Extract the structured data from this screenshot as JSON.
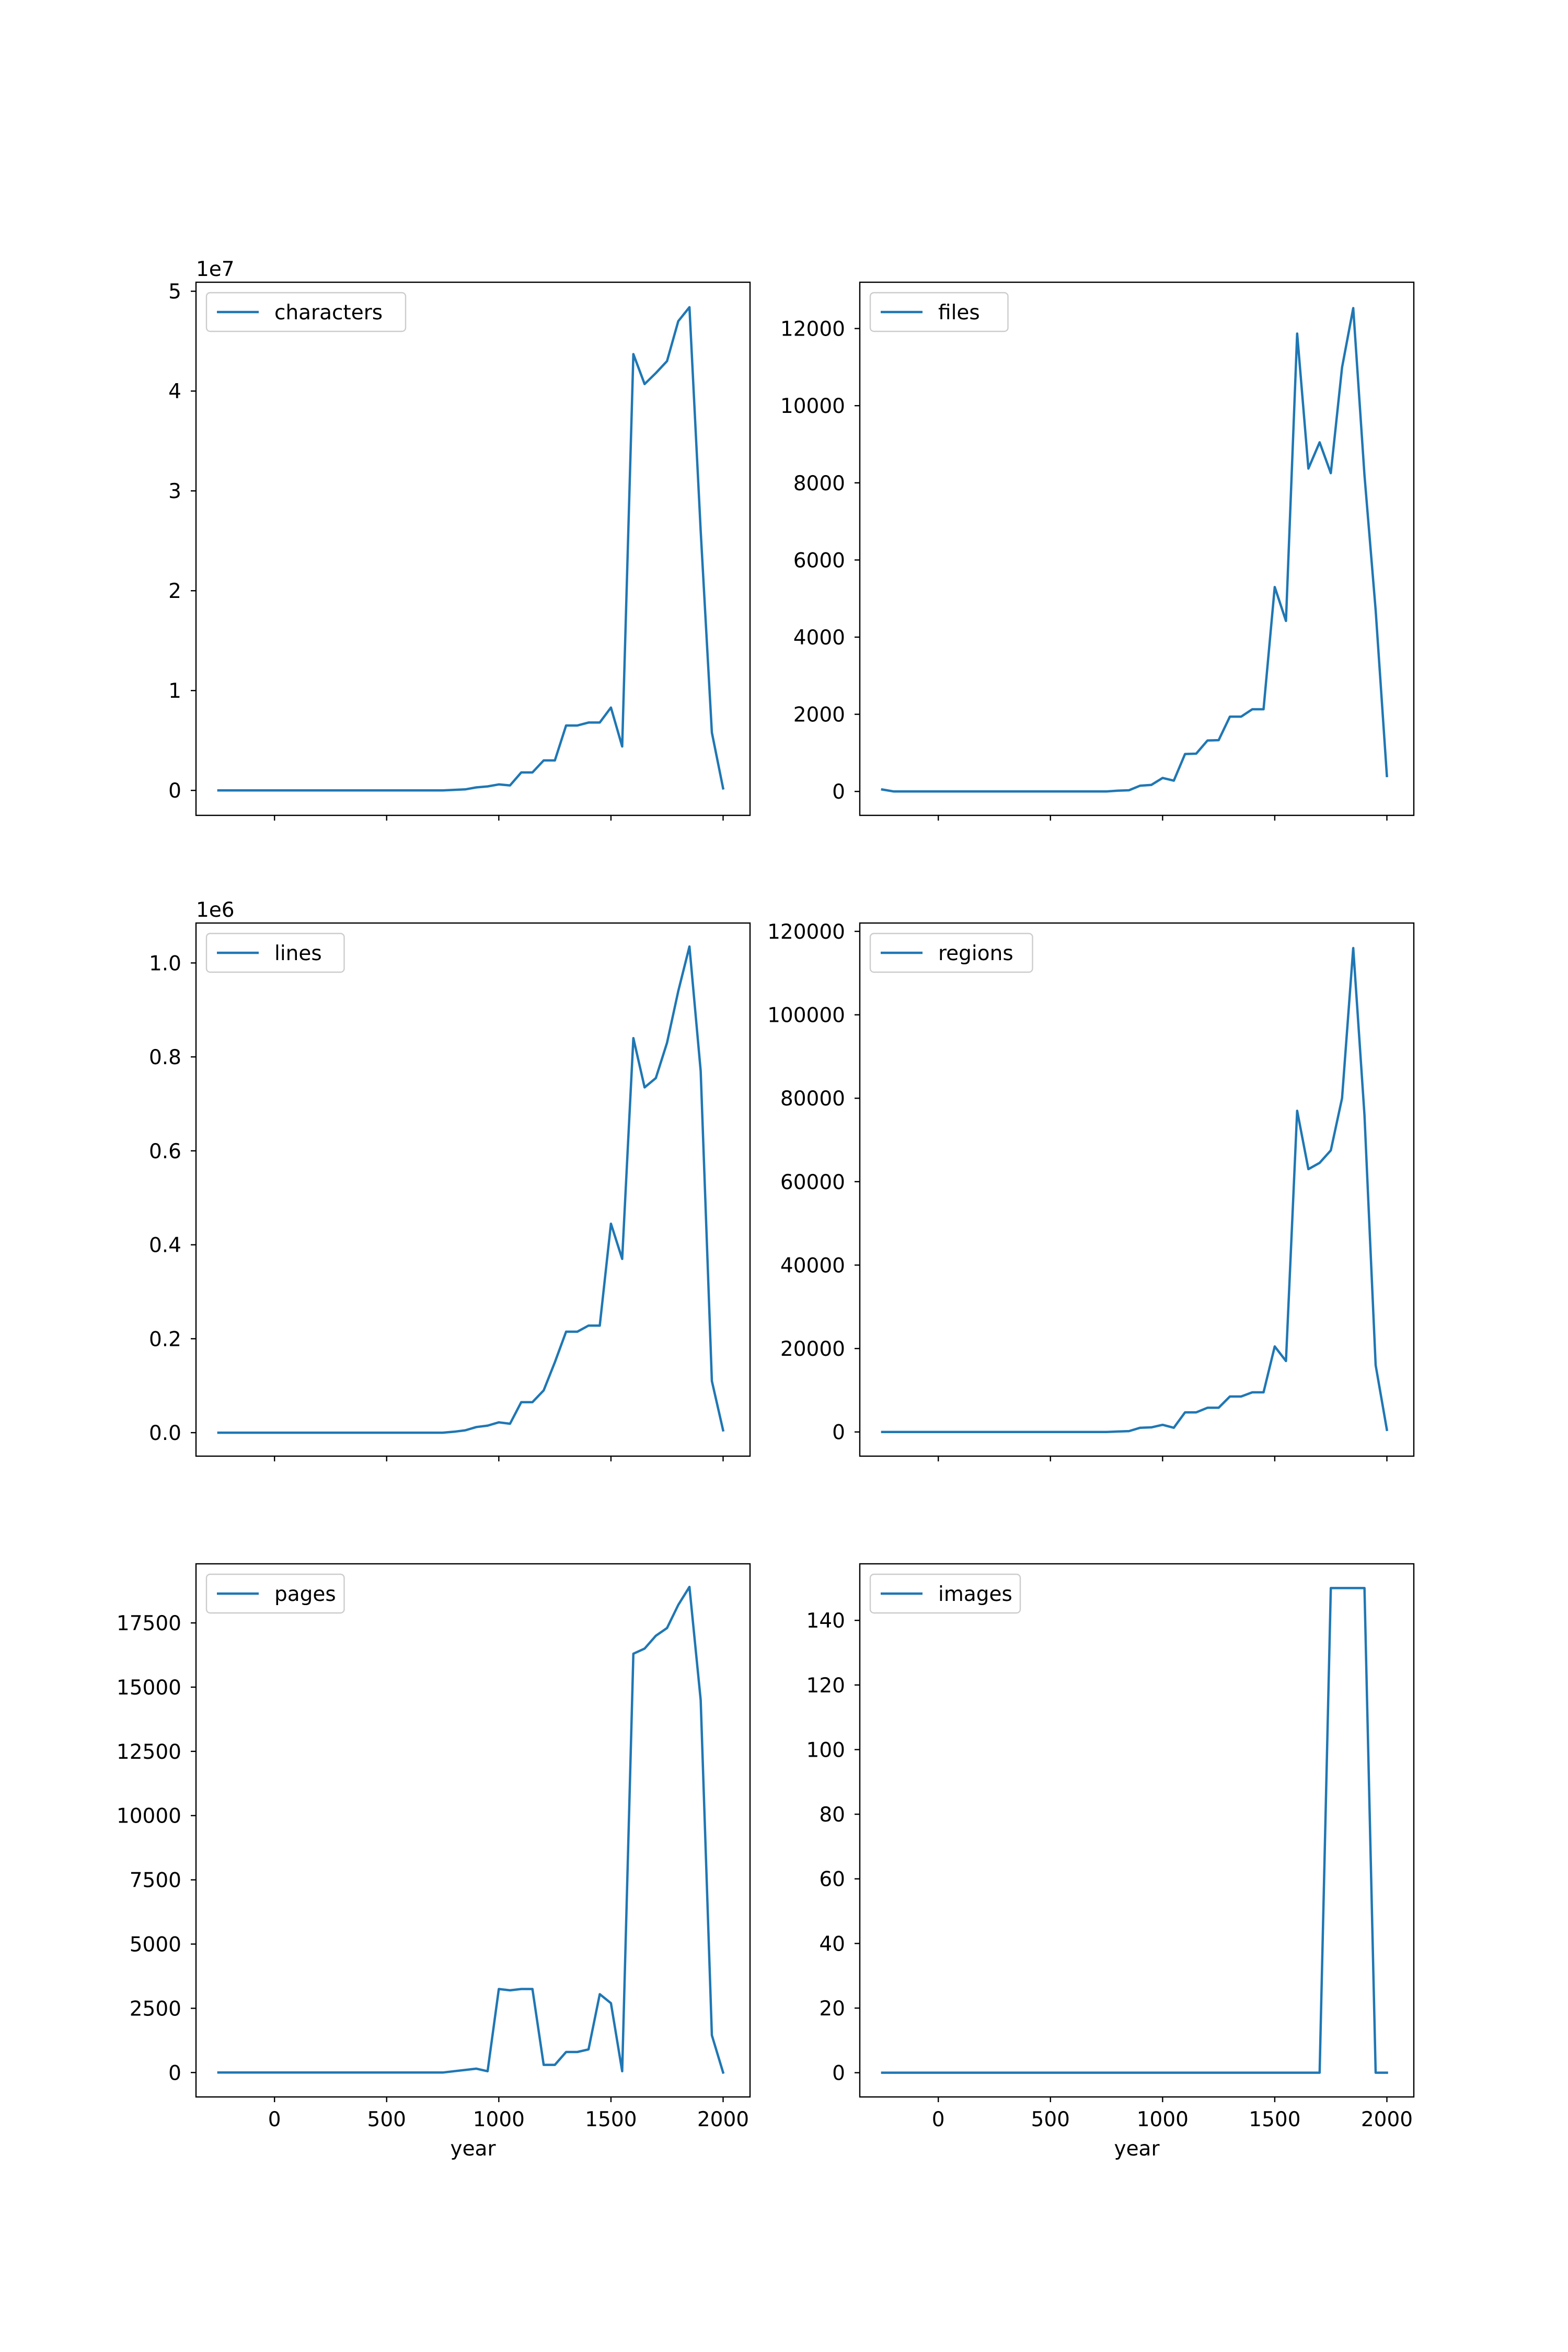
{
  "chart_data": [
    {
      "type": "line",
      "position": "top-left",
      "xlabel": "",
      "ylabel": "",
      "offset_text": "1e7",
      "legend": "upper-left",
      "grid": false,
      "xlim": [
        -350,
        2120
      ],
      "ylim": [
        -2500000,
        50900000
      ],
      "xticks": [
        0,
        500,
        1000,
        1500,
        2000
      ],
      "xtick_labels": [
        "",
        "",
        "",
        "",
        ""
      ],
      "yticks": [
        0,
        10000000,
        20000000,
        30000000,
        40000000,
        50000000
      ],
      "ytick_labels": [
        "0",
        "1",
        "2",
        "3",
        "4",
        "5"
      ],
      "series": [
        {
          "name": "characters",
          "color": "#1f77b4",
          "x": [
            -250,
            -200,
            -150,
            -100,
            -50,
            0,
            50,
            100,
            150,
            200,
            250,
            300,
            350,
            400,
            450,
            500,
            550,
            600,
            650,
            700,
            750,
            800,
            850,
            900,
            950,
            1000,
            1050,
            1100,
            1150,
            1200,
            1250,
            1300,
            1350,
            1400,
            1450,
            1500,
            1550,
            1600,
            1650,
            1700,
            1750,
            1800,
            1850,
            1900,
            1950,
            2000
          ],
          "y": [
            0,
            0,
            0,
            0,
            0,
            0,
            0,
            0,
            0,
            0,
            0,
            0,
            0,
            0,
            0,
            0,
            0,
            0,
            0,
            0,
            0,
            50000,
            100000,
            300000,
            400000,
            600000,
            500000,
            1800000,
            1800000,
            3000000,
            3000000,
            6500000,
            6500000,
            6800000,
            6800000,
            8300000,
            4400000,
            43700000,
            40700000,
            41800000,
            43000000,
            47000000,
            48400000,
            26000000,
            5800000,
            200000
          ]
        }
      ]
    },
    {
      "type": "line",
      "position": "top-right",
      "xlabel": "",
      "ylabel": "",
      "legend": "upper-left",
      "grid": false,
      "xlim": [
        -350,
        2120
      ],
      "ylim": [
        -620,
        13200
      ],
      "xticks": [
        0,
        500,
        1000,
        1500,
        2000
      ],
      "xtick_labels": [
        "",
        "",
        "",
        "",
        ""
      ],
      "yticks": [
        0,
        2000,
        4000,
        6000,
        8000,
        10000,
        12000
      ],
      "ytick_labels": [
        "0",
        "2000",
        "4000",
        "6000",
        "8000",
        "10000",
        "12000"
      ],
      "series": [
        {
          "name": "files",
          "color": "#1f77b4",
          "x": [
            -250,
            -200,
            -150,
            -100,
            -50,
            0,
            50,
            100,
            150,
            200,
            250,
            300,
            350,
            400,
            450,
            500,
            550,
            600,
            650,
            700,
            750,
            800,
            850,
            900,
            950,
            1000,
            1050,
            1100,
            1150,
            1200,
            1250,
            1300,
            1350,
            1400,
            1450,
            1500,
            1550,
            1600,
            1650,
            1700,
            1750,
            1800,
            1850,
            1900,
            1950,
            2000
          ],
          "y": [
            50,
            0,
            0,
            0,
            0,
            0,
            0,
            0,
            0,
            0,
            0,
            0,
            0,
            0,
            0,
            0,
            0,
            0,
            0,
            0,
            0,
            20,
            30,
            150,
            170,
            350,
            280,
            970,
            980,
            1320,
            1330,
            1940,
            1940,
            2130,
            2130,
            5300,
            4420,
            11870,
            8370,
            9050,
            8250,
            10990,
            12530,
            8200,
            4700,
            400
          ]
        }
      ]
    },
    {
      "type": "line",
      "position": "middle-left",
      "xlabel": "",
      "ylabel": "",
      "offset_text": "1e6",
      "legend": "upper-left",
      "grid": false,
      "xlim": [
        -350,
        2120
      ],
      "ylim": [
        -50000,
        1085000
      ],
      "xticks": [
        0,
        500,
        1000,
        1500,
        2000
      ],
      "xtick_labels": [
        "",
        "",
        "",
        "",
        ""
      ],
      "yticks": [
        0,
        200000,
        400000,
        600000,
        800000,
        1000000
      ],
      "ytick_labels": [
        "0.0",
        "0.2",
        "0.4",
        "0.6",
        "0.8",
        "1.0"
      ],
      "series": [
        {
          "name": "lines",
          "color": "#1f77b4",
          "x": [
            -250,
            -200,
            -150,
            -100,
            -50,
            0,
            50,
            100,
            150,
            200,
            250,
            300,
            350,
            400,
            450,
            500,
            550,
            600,
            650,
            700,
            750,
            800,
            850,
            900,
            950,
            1000,
            1050,
            1100,
            1150,
            1200,
            1250,
            1300,
            1350,
            1400,
            1450,
            1500,
            1550,
            1600,
            1650,
            1700,
            1750,
            1800,
            1850,
            1900,
            1950,
            2000
          ],
          "y": [
            0,
            0,
            0,
            0,
            0,
            0,
            0,
            0,
            0,
            0,
            0,
            0,
            0,
            0,
            0,
            0,
            0,
            0,
            0,
            0,
            0,
            2000,
            5000,
            12000,
            15000,
            22000,
            19000,
            65000,
            65000,
            90000,
            150000,
            215000,
            215000,
            228000,
            228000,
            445000,
            370000,
            840000,
            735000,
            755000,
            830000,
            940000,
            1035000,
            770000,
            110000,
            5000
          ]
        }
      ]
    },
    {
      "type": "line",
      "position": "middle-right",
      "xlabel": "",
      "ylabel": "",
      "legend": "upper-left",
      "grid": false,
      "xlim": [
        -350,
        2120
      ],
      "ylim": [
        -5800,
        122000
      ],
      "xticks": [
        0,
        500,
        1000,
        1500,
        2000
      ],
      "xtick_labels": [
        "",
        "",
        "",
        "",
        ""
      ],
      "yticks": [
        0,
        20000,
        40000,
        60000,
        80000,
        100000,
        120000
      ],
      "ytick_labels": [
        "0",
        "20000",
        "40000",
        "60000",
        "80000",
        "100000",
        "120000"
      ],
      "series": [
        {
          "name": "regions",
          "color": "#1f77b4",
          "x": [
            -250,
            -200,
            -150,
            -100,
            -50,
            0,
            50,
            100,
            150,
            200,
            250,
            300,
            350,
            400,
            450,
            500,
            550,
            600,
            650,
            700,
            750,
            800,
            850,
            900,
            950,
            1000,
            1050,
            1100,
            1150,
            1200,
            1250,
            1300,
            1350,
            1400,
            1450,
            1500,
            1550,
            1600,
            1650,
            1700,
            1750,
            1800,
            1850,
            1900,
            1950,
            2000
          ],
          "y": [
            0,
            0,
            0,
            0,
            0,
            0,
            0,
            0,
            0,
            0,
            0,
            0,
            0,
            0,
            0,
            0,
            0,
            0,
            0,
            0,
            0,
            100,
            200,
            1000,
            1100,
            1700,
            1000,
            4700,
            4700,
            5800,
            5800,
            8500,
            8500,
            9500,
            9500,
            20500,
            17000,
            77000,
            63000,
            64500,
            67500,
            80000,
            116000,
            76000,
            16000,
            500
          ]
        }
      ]
    },
    {
      "type": "line",
      "position": "bottom-left",
      "xlabel": "year",
      "ylabel": "",
      "legend": "upper-left",
      "grid": false,
      "xlim": [
        -350,
        2120
      ],
      "ylim": [
        -950,
        19800
      ],
      "xticks": [
        0,
        500,
        1000,
        1500,
        2000
      ],
      "xtick_labels": [
        "0",
        "500",
        "1000",
        "1500",
        "2000"
      ],
      "yticks": [
        0,
        2500,
        5000,
        7500,
        10000,
        12500,
        15000,
        17500
      ],
      "ytick_labels": [
        "0",
        "2500",
        "5000",
        "7500",
        "10000",
        "12500",
        "15000",
        "17500"
      ],
      "series": [
        {
          "name": "pages",
          "color": "#1f77b4",
          "x": [
            -250,
            -200,
            -150,
            -100,
            -50,
            0,
            50,
            100,
            150,
            200,
            250,
            300,
            350,
            400,
            450,
            500,
            550,
            600,
            650,
            700,
            750,
            800,
            850,
            900,
            950,
            1000,
            1050,
            1100,
            1150,
            1200,
            1250,
            1300,
            1350,
            1400,
            1450,
            1500,
            1550,
            1600,
            1650,
            1700,
            1750,
            1800,
            1850,
            1900,
            1950,
            2000
          ],
          "y": [
            0,
            0,
            0,
            0,
            0,
            0,
            0,
            0,
            0,
            0,
            0,
            0,
            0,
            0,
            0,
            0,
            0,
            0,
            0,
            0,
            0,
            50,
            100,
            150,
            50,
            3250,
            3200,
            3250,
            3250,
            300,
            300,
            800,
            800,
            900,
            3050,
            2700,
            50,
            16300,
            16500,
            17000,
            17300,
            18200,
            18900,
            14500,
            1450,
            0
          ]
        }
      ]
    },
    {
      "type": "line",
      "position": "bottom-right",
      "xlabel": "year",
      "ylabel": "",
      "legend": "upper-left",
      "grid": false,
      "xlim": [
        -350,
        2120
      ],
      "ylim": [
        -7.5,
        157.5
      ],
      "xticks": [
        0,
        500,
        1000,
        1500,
        2000
      ],
      "xtick_labels": [
        "0",
        "500",
        "1000",
        "1500",
        "2000"
      ],
      "yticks": [
        0,
        20,
        40,
        60,
        80,
        100,
        120,
        140
      ],
      "ytick_labels": [
        "0",
        "20",
        "40",
        "60",
        "80",
        "100",
        "120",
        "140"
      ],
      "series": [
        {
          "name": "images",
          "color": "#1f77b4",
          "x": [
            -250,
            -200,
            -150,
            -100,
            -50,
            0,
            50,
            100,
            150,
            200,
            250,
            300,
            350,
            400,
            450,
            500,
            550,
            600,
            650,
            700,
            750,
            800,
            850,
            900,
            950,
            1000,
            1050,
            1100,
            1150,
            1200,
            1250,
            1300,
            1350,
            1400,
            1450,
            1500,
            1550,
            1600,
            1650,
            1700,
            1750,
            1800,
            1850,
            1900,
            1950,
            2000
          ],
          "y": [
            0,
            0,
            0,
            0,
            0,
            0,
            0,
            0,
            0,
            0,
            0,
            0,
            0,
            0,
            0,
            0,
            0,
            0,
            0,
            0,
            0,
            0,
            0,
            0,
            0,
            0,
            0,
            0,
            0,
            0,
            0,
            0,
            0,
            0,
            0,
            0,
            0,
            0,
            0,
            0,
            150,
            150,
            150,
            150,
            0,
            0
          ]
        }
      ]
    }
  ]
}
